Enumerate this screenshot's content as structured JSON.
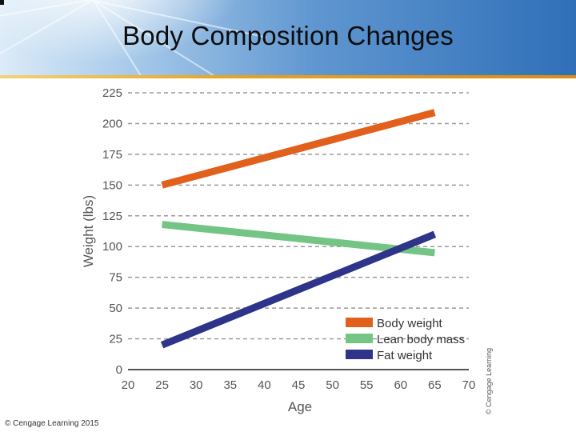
{
  "page": {
    "title": "Body Composition Changes",
    "credit": "© Cengage Learning 2015",
    "side_credit": "© Cengage Learning"
  },
  "chart_data": {
    "type": "line",
    "title": "Body Composition Changes",
    "xlabel": "Age",
    "ylabel": "Weight (lbs)",
    "xlim": [
      20,
      70
    ],
    "ylim": [
      0,
      225
    ],
    "x_ticks": [
      20,
      25,
      30,
      35,
      40,
      45,
      50,
      55,
      60,
      65,
      70
    ],
    "y_ticks": [
      0,
      25,
      50,
      75,
      100,
      125,
      150,
      175,
      200,
      225
    ],
    "grid": "horizontal dashed",
    "legend_position": "bottom-right",
    "series": [
      {
        "name": "Body weight",
        "color": "#e0601c",
        "points": [
          [
            25,
            150
          ],
          [
            65,
            209
          ]
        ]
      },
      {
        "name": "Lean body mass",
        "color": "#74c486",
        "points": [
          [
            25,
            118
          ],
          [
            65,
            95
          ]
        ]
      },
      {
        "name": "Fat weight",
        "color": "#2d3489",
        "points": [
          [
            25,
            20
          ],
          [
            65,
            110
          ]
        ]
      }
    ]
  }
}
